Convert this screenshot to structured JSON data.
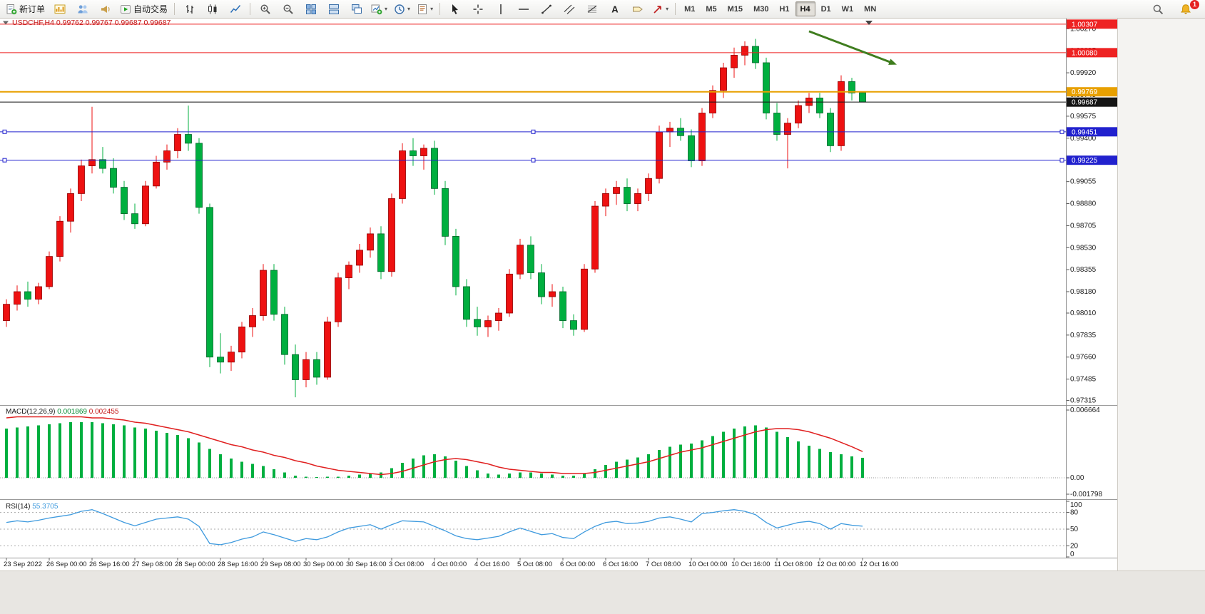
{
  "toolbar": {
    "buttons": [
      {
        "name": "new-order",
        "icon": "new-order-icon",
        "label": "新订单"
      },
      {
        "name": "charts",
        "icon": "chart-window-icon"
      },
      {
        "name": "profiles",
        "icon": "profiles-icon"
      },
      {
        "name": "alerts",
        "icon": "megaphone-icon"
      },
      {
        "name": "autotrading",
        "icon": "autotrade-icon",
        "label": "自动交易"
      },
      {
        "sep": true
      },
      {
        "name": "bars-chart-type",
        "icon": "ohlc-bars-icon"
      },
      {
        "name": "candles-chart-type",
        "icon": "candles-icon"
      },
      {
        "name": "line-chart-type",
        "icon": "line-chart-icon"
      },
      {
        "sep": true
      },
      {
        "name": "zoom-in",
        "icon": "zoom-in-icon"
      },
      {
        "name": "zoom-out",
        "icon": "zoom-out-icon"
      },
      {
        "name": "tile-windows",
        "icon": "tile-windows-icon"
      },
      {
        "name": "arrange-windows",
        "icon": "arrange-windows-icon"
      },
      {
        "name": "cascade-windows",
        "icon": "cascade-windows-icon"
      },
      {
        "name": "new-chart",
        "icon": "new-chart-icon",
        "dropdown": true
      },
      {
        "name": "periods",
        "icon": "clock-icon",
        "dropdown": true
      },
      {
        "name": "templates",
        "icon": "template-icon",
        "dropdown": true
      },
      {
        "sep": true
      },
      {
        "name": "cursor",
        "icon": "cursor-icon"
      },
      {
        "name": "crosshair",
        "icon": "crosshair-icon"
      },
      {
        "name": "vertical-line",
        "icon": "vline-icon"
      },
      {
        "name": "horizontal-line",
        "icon": "hline-icon"
      },
      {
        "name": "trendline",
        "icon": "trendline-icon"
      },
      {
        "name": "channel",
        "icon": "channel-icon"
      },
      {
        "name": "fibonacci",
        "icon": "fibonacci-icon"
      },
      {
        "name": "text",
        "icon": "text-icon"
      },
      {
        "name": "text-label",
        "icon": "label-icon"
      },
      {
        "name": "arrows",
        "icon": "arrow-tool-icon",
        "dropdown": true
      },
      {
        "sep": true
      }
    ],
    "timeframes": [
      "M1",
      "M5",
      "M15",
      "M30",
      "H1",
      "H4",
      "D1",
      "W1",
      "MN"
    ],
    "active_timeframe": "H4",
    "notifications": {
      "badge": "1"
    }
  },
  "chart_data": {
    "type": "candlestick",
    "symbol_period": "USDCHF,H4",
    "ohlc": {
      "open": "0.99762",
      "high": "0.99767",
      "low": "0.99687",
      "close": "0.99687"
    },
    "price_scale": {
      "max": 1.0034,
      "min": 0.9729
    },
    "price_ticks": [
      "1.00270",
      "1.00095",
      "0.99920",
      "0.99745",
      "0.99575",
      "0.99400",
      "0.99230",
      "0.99055",
      "0.98880",
      "0.98705",
      "0.98530",
      "0.98355",
      "0.98180",
      "0.98010",
      "0.97835",
      "0.97660",
      "0.97485",
      "0.97315"
    ],
    "x_labels": [
      "23 Sep 2022",
      "26 Sep 00:00",
      "26 Sep 16:00",
      "27 Sep 08:00",
      "28 Sep 00:00",
      "28 Sep 16:00",
      "29 Sep 08:00",
      "30 Sep 00:00",
      "30 Sep 16:00",
      "3 Oct 08:00",
      "4 Oct 00:00",
      "4 Oct 16:00",
      "5 Oct 08:00",
      "6 Oct 00:00",
      "6 Oct 16:00",
      "7 Oct 08:00",
      "10 Oct 00:00",
      "10 Oct 16:00",
      "11 Oct 08:00",
      "12 Oct 00:00",
      "12 Oct 16:00"
    ],
    "x_label_step": 4,
    "candles": [
      [
        0.9795,
        0.9812,
        0.979,
        0.9808
      ],
      [
        0.9808,
        0.9823,
        0.9803,
        0.9818
      ],
      [
        0.9818,
        0.9826,
        0.9806,
        0.9812
      ],
      [
        0.9812,
        0.9825,
        0.9808,
        0.9822
      ],
      [
        0.9822,
        0.985,
        0.982,
        0.9846
      ],
      [
        0.9846,
        0.9878,
        0.9842,
        0.9874
      ],
      [
        0.9874,
        0.99,
        0.9865,
        0.9896
      ],
      [
        0.9896,
        0.9923,
        0.989,
        0.9918
      ],
      [
        0.9918,
        0.9965,
        0.9912,
        0.9923
      ],
      [
        0.9923,
        0.9933,
        0.9912,
        0.9916
      ],
      [
        0.9916,
        0.9924,
        0.9896,
        0.9901
      ],
      [
        0.9901,
        0.9906,
        0.9875,
        0.988
      ],
      [
        0.988,
        0.9888,
        0.9868,
        0.9872
      ],
      [
        0.9872,
        0.9906,
        0.987,
        0.9902
      ],
      [
        0.9902,
        0.9926,
        0.99,
        0.9921
      ],
      [
        0.9921,
        0.9935,
        0.9915,
        0.993
      ],
      [
        0.993,
        0.9948,
        0.9924,
        0.9943
      ],
      [
        0.9943,
        0.9966,
        0.993,
        0.9936
      ],
      [
        0.9936,
        0.994,
        0.988,
        0.9885
      ],
      [
        0.9885,
        0.9888,
        0.9758,
        0.9766
      ],
      [
        0.9766,
        0.9785,
        0.9753,
        0.9762
      ],
      [
        0.9762,
        0.9775,
        0.9755,
        0.977
      ],
      [
        0.977,
        0.9794,
        0.9765,
        0.979
      ],
      [
        0.979,
        0.9805,
        0.9782,
        0.9799
      ],
      [
        0.9799,
        0.984,
        0.9795,
        0.9835
      ],
      [
        0.9835,
        0.984,
        0.9795,
        0.98
      ],
      [
        0.98,
        0.9806,
        0.976,
        0.9768
      ],
      [
        0.9768,
        0.9776,
        0.9734,
        0.9748
      ],
      [
        0.9748,
        0.977,
        0.9742,
        0.9764
      ],
      [
        0.9764,
        0.977,
        0.9744,
        0.975
      ],
      [
        0.975,
        0.9798,
        0.9748,
        0.9794
      ],
      [
        0.9794,
        0.9833,
        0.979,
        0.9829
      ],
      [
        0.9829,
        0.9842,
        0.982,
        0.9839
      ],
      [
        0.9839,
        0.9856,
        0.9833,
        0.9851
      ],
      [
        0.9851,
        0.9869,
        0.9845,
        0.9864
      ],
      [
        0.9864,
        0.987,
        0.9828,
        0.9834
      ],
      [
        0.9834,
        0.9896,
        0.983,
        0.9892
      ],
      [
        0.9892,
        0.9936,
        0.9888,
        0.993
      ],
      [
        0.993,
        0.994,
        0.9918,
        0.9926
      ],
      [
        0.9926,
        0.9935,
        0.9915,
        0.9932
      ],
      [
        0.9932,
        0.9938,
        0.9895,
        0.99
      ],
      [
        0.99,
        0.9906,
        0.9855,
        0.9862
      ],
      [
        0.9862,
        0.9868,
        0.9815,
        0.9822
      ],
      [
        0.9822,
        0.9828,
        0.979,
        0.9796
      ],
      [
        0.9796,
        0.9806,
        0.9783,
        0.979
      ],
      [
        0.979,
        0.9799,
        0.9782,
        0.9795
      ],
      [
        0.9795,
        0.9805,
        0.9787,
        0.9801
      ],
      [
        0.9801,
        0.9836,
        0.9798,
        0.9832
      ],
      [
        0.9832,
        0.986,
        0.9828,
        0.9855
      ],
      [
        0.9855,
        0.9862,
        0.9828,
        0.9833
      ],
      [
        0.9833,
        0.984,
        0.9808,
        0.9814
      ],
      [
        0.9814,
        0.9824,
        0.9806,
        0.9818
      ],
      [
        0.9818,
        0.9822,
        0.9789,
        0.9795
      ],
      [
        0.9795,
        0.98,
        0.9783,
        0.9788
      ],
      [
        0.9788,
        0.984,
        0.9786,
        0.9836
      ],
      [
        0.9836,
        0.989,
        0.9833,
        0.9886
      ],
      [
        0.9886,
        0.99,
        0.9878,
        0.9896
      ],
      [
        0.9896,
        0.9906,
        0.9887,
        0.9901
      ],
      [
        0.9901,
        0.9908,
        0.9882,
        0.9888
      ],
      [
        0.9888,
        0.99,
        0.9882,
        0.9896
      ],
      [
        0.9896,
        0.9912,
        0.989,
        0.9908
      ],
      [
        0.9908,
        0.995,
        0.9904,
        0.9945
      ],
      [
        0.9945,
        0.9953,
        0.9933,
        0.9948
      ],
      [
        0.9948,
        0.9956,
        0.9938,
        0.9942
      ],
      [
        0.9942,
        0.9947,
        0.9917,
        0.9922
      ],
      [
        0.9922,
        0.9964,
        0.9918,
        0.996
      ],
      [
        0.996,
        0.9982,
        0.9956,
        0.9978
      ],
      [
        0.9978,
        1.0,
        0.9972,
        0.9996
      ],
      [
        0.9996,
        1.0012,
        0.9988,
        1.0006
      ],
      [
        1.0006,
        1.0017,
        0.9998,
        1.0013
      ],
      [
        1.0013,
        1.0019,
        0.9995,
        1.0
      ],
      [
        1.0,
        1.0004,
        0.9955,
        0.996
      ],
      [
        0.996,
        0.9968,
        0.9938,
        0.9943
      ],
      [
        0.9943,
        0.9956,
        0.9916,
        0.9952
      ],
      [
        0.9952,
        0.997,
        0.9948,
        0.9966
      ],
      [
        0.9966,
        0.9976,
        0.996,
        0.9972
      ],
      [
        0.9972,
        0.9976,
        0.9956,
        0.996
      ],
      [
        0.996,
        0.9964,
        0.9929,
        0.9934
      ],
      [
        0.9934,
        0.999,
        0.993,
        0.9985
      ],
      [
        0.9985,
        0.9988,
        0.997,
        0.9976
      ],
      [
        0.99762,
        0.99767,
        0.99687,
        0.99687
      ]
    ],
    "levels": [
      {
        "price": 1.00307,
        "color": "#EE2222",
        "width": 1,
        "badge": "1.00307"
      },
      {
        "price": 1.0008,
        "color": "#EE2222",
        "width": 1,
        "badge": "1.00080"
      },
      {
        "price": 0.99769,
        "color": "#E8A000",
        "width": 2,
        "badge": "0.99769"
      },
      {
        "price": 0.99687,
        "color": "#151515",
        "width": 1,
        "badge": "0.99687",
        "role": "current-price"
      },
      {
        "price": 0.99451,
        "color": "#2121CE",
        "width": 1,
        "badge": "0.99451",
        "selected": true
      },
      {
        "price": 0.99225,
        "color": "#2121CE",
        "width": 1,
        "badge": "0.99225",
        "selected": true
      }
    ],
    "trend_arrow": {
      "from_index": 75,
      "from_price": 1.0025,
      "to_index": 83.2,
      "to_price": 0.99985,
      "color": "#3F7D1E",
      "width": 3
    },
    "shift_marker": true,
    "macd": {
      "label": "MACD(12,26,9)",
      "value_main": "0.001869",
      "value_signal": "0.002455",
      "ylim": [
        -0.001798,
        0.006664
      ],
      "axis_labels": {
        "top": "0.006664",
        "zero": "0.00",
        "bottom": "-0.001798"
      },
      "colors": {
        "histogram": "#00AF3F",
        "signal": "#E02020"
      },
      "histogram": [
        0.0046,
        0.0047,
        0.0048,
        0.0049,
        0.005,
        0.0051,
        0.0052,
        0.0052,
        0.0052,
        0.0051,
        0.005,
        0.0049,
        0.0047,
        0.0046,
        0.0044,
        0.0042,
        0.004,
        0.0037,
        0.0033,
        0.0027,
        0.0022,
        0.0018,
        0.0015,
        0.0013,
        0.0011,
        0.0008,
        0.0005,
        0.0002,
        0.0001,
        0.0,
        0.0001,
        0.0001,
        0.0002,
        0.0003,
        0.0004,
        0.0005,
        0.0009,
        0.0014,
        0.0018,
        0.0021,
        0.0022,
        0.002,
        0.0016,
        0.0011,
        0.0007,
        0.0004,
        0.0003,
        0.0004,
        0.0005,
        0.0005,
        0.0004,
        0.0003,
        0.0002,
        0.0002,
        0.0004,
        0.0008,
        0.0012,
        0.0015,
        0.0017,
        0.0019,
        0.0022,
        0.0026,
        0.0029,
        0.0031,
        0.0032,
        0.0035,
        0.0039,
        0.0043,
        0.0046,
        0.0048,
        0.0049,
        0.0047,
        0.0043,
        0.0038,
        0.0034,
        0.003,
        0.0027,
        0.0024,
        0.0022,
        0.002,
        0.001869
      ],
      "signal": [
        0.0056,
        0.0057,
        0.0057,
        0.0057,
        0.0057,
        0.0057,
        0.0057,
        0.0057,
        0.0056,
        0.0056,
        0.0055,
        0.0054,
        0.0052,
        0.0051,
        0.0049,
        0.0047,
        0.0045,
        0.0043,
        0.004,
        0.0037,
        0.0034,
        0.0031,
        0.0029,
        0.0026,
        0.0024,
        0.0021,
        0.0019,
        0.0016,
        0.0014,
        0.0011,
        0.0009,
        0.0007,
        0.0006,
        0.0005,
        0.0004,
        0.0003,
        0.0004,
        0.0006,
        0.0009,
        0.0012,
        0.0015,
        0.0017,
        0.0018,
        0.0017,
        0.0015,
        0.0013,
        0.001,
        0.0008,
        0.0007,
        0.0006,
        0.0005,
        0.0005,
        0.0004,
        0.0004,
        0.0004,
        0.0005,
        0.0007,
        0.0009,
        0.0011,
        0.0013,
        0.0015,
        0.0018,
        0.0021,
        0.0024,
        0.0026,
        0.0028,
        0.0031,
        0.0034,
        0.0037,
        0.004,
        0.0043,
        0.0045,
        0.0046,
        0.0046,
        0.0045,
        0.0043,
        0.004,
        0.0037,
        0.0033,
        0.0029,
        0.002455
      ]
    },
    "rsi": {
      "label": "RSI(14)",
      "value": "55.3705",
      "color": "#3E9ADE",
      "ylim": [
        0,
        100
      ],
      "levels": [
        80,
        50,
        20
      ],
      "axis_labels": [
        "100",
        "80",
        "50",
        "20",
        "0"
      ],
      "values": [
        62,
        65,
        63,
        66,
        70,
        73,
        76,
        82,
        85,
        78,
        70,
        62,
        56,
        62,
        68,
        70,
        72,
        68,
        55,
        24,
        22,
        26,
        32,
        36,
        45,
        40,
        34,
        28,
        33,
        31,
        36,
        45,
        52,
        55,
        58,
        50,
        58,
        65,
        64,
        63,
        55,
        47,
        38,
        33,
        31,
        34,
        37,
        45,
        52,
        46,
        40,
        42,
        35,
        33,
        45,
        55,
        62,
        64,
        60,
        61,
        64,
        70,
        72,
        68,
        63,
        78,
        80,
        83,
        85,
        82,
        76,
        62,
        52,
        57,
        62,
        64,
        60,
        50,
        60,
        57,
        55.37
      ]
    },
    "colors": {
      "up": "#EE1111",
      "up_stroke": "#8F0000",
      "down": "#00AF3F",
      "down_stroke": "#00642A",
      "background": "#FFFFFF",
      "axis_text": "#1A1A1A",
      "header_text": "#C41414"
    }
  }
}
